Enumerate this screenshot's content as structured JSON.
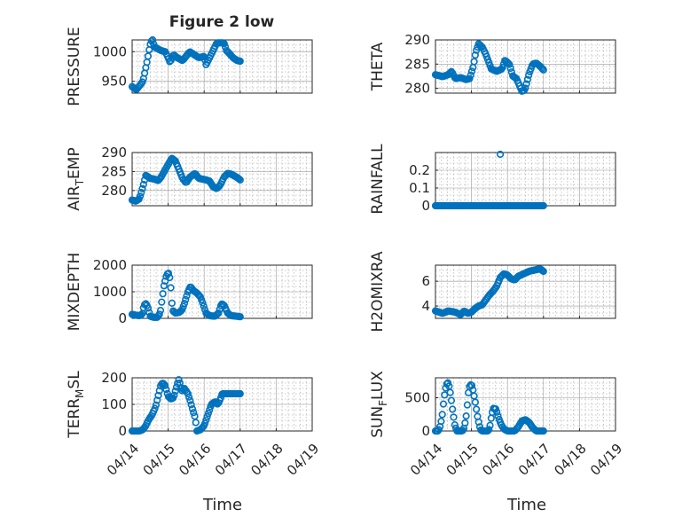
{
  "chart_data": {
    "type": "scatter",
    "title": "Figure 2 low",
    "xlabel": "Time",
    "x_ticks": [
      "04/14",
      "04/15",
      "04/16",
      "04/17",
      "04/18",
      "04/19"
    ],
    "x_range": [
      "04/14",
      "04/19"
    ],
    "grid": true,
    "marker_color": "#0072BD",
    "marker": "open-circle",
    "panels": [
      {
        "id": "pressure",
        "ylabel": "PRESSURE",
        "ylim": [
          930,
          1020
        ],
        "yticks": [
          950,
          1000
        ],
        "anchors": [
          [
            0.0,
            941
          ],
          [
            0.06,
            938
          ],
          [
            0.12,
            936
          ],
          [
            0.2,
            942
          ],
          [
            0.3,
            950
          ],
          [
            0.42,
            985
          ],
          [
            0.5,
            1012
          ],
          [
            0.56,
            1022
          ],
          [
            0.62,
            1008
          ],
          [
            0.8,
            1002
          ],
          [
            0.92,
            1000
          ],
          [
            1.0,
            990
          ],
          [
            1.05,
            982
          ],
          [
            1.15,
            995
          ],
          [
            1.25,
            990
          ],
          [
            1.4,
            985
          ],
          [
            1.6,
            1000
          ],
          [
            1.85,
            990
          ],
          [
            2.0,
            992
          ],
          [
            2.05,
            978
          ],
          [
            2.15,
            990
          ],
          [
            2.25,
            1002
          ],
          [
            2.35,
            1015
          ],
          [
            2.55,
            1015
          ],
          [
            2.62,
            1002
          ],
          [
            2.7,
            997
          ],
          [
            2.8,
            990
          ],
          [
            2.92,
            985
          ],
          [
            3.0,
            984
          ]
        ]
      },
      {
        "id": "theta",
        "ylabel": "THETA",
        "ylim": [
          279,
          290
        ],
        "yticks": [
          280,
          285,
          290
        ],
        "anchors": [
          [
            0.0,
            282.8
          ],
          [
            0.2,
            282.4
          ],
          [
            0.35,
            282.8
          ],
          [
            0.45,
            283.5
          ],
          [
            0.55,
            282.0
          ],
          [
            0.7,
            282.2
          ],
          [
            0.85,
            281.8
          ],
          [
            0.95,
            282.0
          ],
          [
            1.05,
            284.5
          ],
          [
            1.12,
            287.5
          ],
          [
            1.2,
            289.2
          ],
          [
            1.3,
            288.5
          ],
          [
            1.4,
            287.0
          ],
          [
            1.55,
            284.0
          ],
          [
            1.7,
            283.5
          ],
          [
            1.85,
            284.0
          ],
          [
            1.93,
            285.8
          ],
          [
            2.05,
            285.0
          ],
          [
            2.15,
            282.5
          ],
          [
            2.25,
            282.0
          ],
          [
            2.32,
            280.8
          ],
          [
            2.4,
            279.4
          ],
          [
            2.48,
            279.6
          ],
          [
            2.6,
            283.0
          ],
          [
            2.7,
            285.0
          ],
          [
            2.8,
            285.2
          ],
          [
            2.9,
            284.6
          ],
          [
            3.0,
            283.8
          ]
        ]
      },
      {
        "id": "air_temp",
        "ylabel": "AIR",
        "ylabel_sub": "T",
        "ylabel_rest": "EMP",
        "ylim": [
          276,
          290
        ],
        "yticks": [
          280,
          285,
          290
        ],
        "anchors": [
          [
            0.0,
            277.5
          ],
          [
            0.1,
            277.2
          ],
          [
            0.2,
            277.8
          ],
          [
            0.3,
            281.0
          ],
          [
            0.38,
            284.0
          ],
          [
            0.5,
            283.2
          ],
          [
            0.62,
            283.0
          ],
          [
            0.72,
            282.6
          ],
          [
            0.8,
            283.5
          ],
          [
            0.95,
            286.0
          ],
          [
            1.1,
            288.5
          ],
          [
            1.2,
            287.8
          ],
          [
            1.3,
            285.5
          ],
          [
            1.4,
            283.2
          ],
          [
            1.5,
            282.0
          ],
          [
            1.6,
            283.5
          ],
          [
            1.75,
            284.5
          ],
          [
            1.85,
            283.2
          ],
          [
            1.95,
            283.0
          ],
          [
            2.05,
            282.8
          ],
          [
            2.15,
            282.5
          ],
          [
            2.25,
            281.0
          ],
          [
            2.35,
            280.5
          ],
          [
            2.45,
            281.5
          ],
          [
            2.55,
            283.5
          ],
          [
            2.65,
            284.5
          ],
          [
            2.75,
            284.3
          ],
          [
            2.85,
            283.8
          ],
          [
            2.95,
            283.2
          ],
          [
            3.0,
            282.8
          ]
        ]
      },
      {
        "id": "rainfall",
        "ylabel": "RAINFALL",
        "ylim": [
          0,
          0.3
        ],
        "yticks": [
          0,
          0.1,
          0.2
        ],
        "anchors": [
          [
            0.0,
            0
          ],
          [
            3.0,
            0
          ]
        ],
        "extra_points": [
          [
            1.8,
            0.29
          ]
        ]
      },
      {
        "id": "mixdepth",
        "ylabel": "MIXDEPTH",
        "ylim": [
          0,
          2000
        ],
        "yticks": [
          0,
          1000,
          2000
        ],
        "anchors": [
          [
            0.0,
            150
          ],
          [
            0.1,
            120
          ],
          [
            0.2,
            100
          ],
          [
            0.28,
            150
          ],
          [
            0.33,
            500
          ],
          [
            0.38,
            550
          ],
          [
            0.43,
            450
          ],
          [
            0.5,
            80
          ],
          [
            0.6,
            40
          ],
          [
            0.7,
            40
          ],
          [
            0.78,
            200
          ],
          [
            0.88,
            1200
          ],
          [
            0.96,
            1650
          ],
          [
            1.02,
            1700
          ],
          [
            1.06,
            1400
          ],
          [
            1.12,
            300
          ],
          [
            1.2,
            200
          ],
          [
            1.3,
            220
          ],
          [
            1.38,
            300
          ],
          [
            1.45,
            550
          ],
          [
            1.55,
            1000
          ],
          [
            1.62,
            1200
          ],
          [
            1.7,
            1050
          ],
          [
            1.8,
            950
          ],
          [
            1.9,
            800
          ],
          [
            1.98,
            500
          ],
          [
            2.05,
            200
          ],
          [
            2.15,
            100
          ],
          [
            2.3,
            80
          ],
          [
            2.4,
            200
          ],
          [
            2.48,
            550
          ],
          [
            2.55,
            500
          ],
          [
            2.65,
            200
          ],
          [
            2.75,
            100
          ],
          [
            2.9,
            80
          ],
          [
            3.0,
            60
          ]
        ]
      },
      {
        "id": "h2omixra",
        "ylabel": "H2OMIXRA",
        "ylim": [
          3.0,
          7.3
        ],
        "yticks": [
          4,
          6
        ],
        "anchors": [
          [
            0.0,
            3.6
          ],
          [
            0.2,
            3.4
          ],
          [
            0.35,
            3.6
          ],
          [
            0.55,
            3.5
          ],
          [
            0.7,
            3.3
          ],
          [
            0.8,
            3.6
          ],
          [
            0.9,
            3.4
          ],
          [
            1.0,
            3.5
          ],
          [
            1.1,
            3.8
          ],
          [
            1.2,
            4.0
          ],
          [
            1.3,
            4.1
          ],
          [
            1.4,
            4.5
          ],
          [
            1.5,
            4.9
          ],
          [
            1.6,
            5.2
          ],
          [
            1.7,
            5.6
          ],
          [
            1.8,
            6.3
          ],
          [
            1.9,
            6.6
          ],
          [
            2.0,
            6.5
          ],
          [
            2.1,
            6.2
          ],
          [
            2.2,
            6.1
          ],
          [
            2.3,
            6.4
          ],
          [
            2.45,
            6.6
          ],
          [
            2.6,
            6.8
          ],
          [
            2.75,
            6.9
          ],
          [
            2.9,
            7.0
          ],
          [
            3.0,
            6.8
          ]
        ]
      },
      {
        "id": "terr_msl",
        "ylabel": "TERR",
        "ylabel_sub": "M",
        "ylabel_rest": "SL",
        "ylim": [
          0,
          200
        ],
        "yticks": [
          0,
          100,
          200
        ],
        "anchors": [
          [
            0.0,
            0
          ],
          [
            0.2,
            0
          ],
          [
            0.3,
            5
          ],
          [
            0.38,
            20
          ],
          [
            0.45,
            40
          ],
          [
            0.55,
            60
          ],
          [
            0.65,
            90
          ],
          [
            0.72,
            130
          ],
          [
            0.8,
            175
          ],
          [
            0.86,
            180
          ],
          [
            0.92,
            170
          ],
          [
            1.0,
            130
          ],
          [
            1.08,
            120
          ],
          [
            1.15,
            125
          ],
          [
            1.22,
            160
          ],
          [
            1.3,
            195
          ],
          [
            1.38,
            150
          ],
          [
            1.45,
            160
          ],
          [
            1.55,
            140
          ],
          [
            1.62,
            110
          ],
          [
            1.68,
            80
          ],
          [
            1.75,
            50
          ],
          [
            1.8,
            0
          ],
          [
            1.9,
            5
          ],
          [
            2.0,
            20
          ],
          [
            2.1,
            60
          ],
          [
            2.2,
            100
          ],
          [
            2.3,
            110
          ],
          [
            2.38,
            100
          ],
          [
            2.45,
            120
          ],
          [
            2.5,
            140
          ]
        ]
      },
      {
        "id": "sun_flux",
        "ylabel": "SUN",
        "ylabel_sub": "F",
        "ylabel_rest": "LUX",
        "ylim": [
          0,
          800
        ],
        "yticks": [
          0,
          500
        ],
        "anchors": [
          [
            0.0,
            0
          ],
          [
            0.08,
            0
          ],
          [
            0.12,
            50
          ],
          [
            0.18,
            200
          ],
          [
            0.24,
            500
          ],
          [
            0.3,
            700
          ],
          [
            0.36,
            730
          ],
          [
            0.42,
            550
          ],
          [
            0.48,
            300
          ],
          [
            0.54,
            80
          ],
          [
            0.6,
            0
          ],
          [
            0.75,
            0
          ],
          [
            0.8,
            50
          ],
          [
            0.86,
            250
          ],
          [
            0.92,
            600
          ],
          [
            0.96,
            700
          ],
          [
            1.02,
            680
          ],
          [
            1.1,
            450
          ],
          [
            1.18,
            180
          ],
          [
            1.25,
            20
          ],
          [
            1.3,
            0
          ],
          [
            1.45,
            0
          ],
          [
            1.5,
            30
          ],
          [
            1.55,
            200
          ],
          [
            1.6,
            340
          ],
          [
            1.68,
            330
          ],
          [
            1.75,
            200
          ],
          [
            1.82,
            100
          ],
          [
            1.9,
            30
          ],
          [
            2.0,
            0
          ],
          [
            2.2,
            0
          ],
          [
            2.3,
            60
          ],
          [
            2.4,
            150
          ],
          [
            2.5,
            170
          ],
          [
            2.6,
            130
          ],
          [
            2.7,
            50
          ],
          [
            2.8,
            0
          ],
          [
            3.0,
            0
          ]
        ]
      }
    ]
  }
}
